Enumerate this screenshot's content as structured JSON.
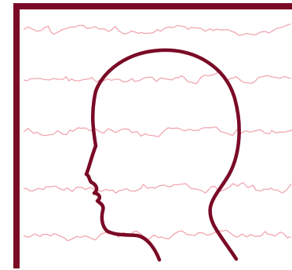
{
  "illustration": {
    "subject": "head-profile-with-brainwaves",
    "colors": {
      "background": "#ffffff",
      "frame": "#7a0a26",
      "head_outline": "#7a0a26",
      "waves": "#f0a7b1"
    },
    "wave_rows": 5
  }
}
